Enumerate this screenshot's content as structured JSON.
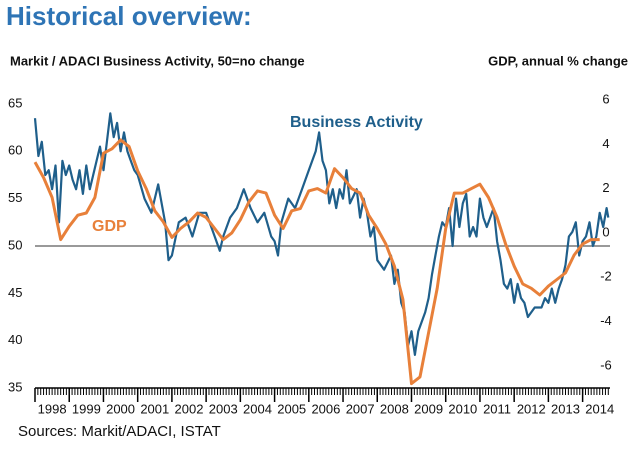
{
  "chart_data": {
    "type": "line",
    "title": "Historical overview:",
    "y_label": "Markit / ADACI  Business Activity, 50=no change",
    "y2_label": "GDP, annual % change",
    "source": "Sources: Markit/ADACI, ISTAT",
    "xlim": [
      1998,
      2014.8
    ],
    "xticks": [
      1998,
      1999,
      2000,
      2001,
      2002,
      2003,
      2004,
      2005,
      2006,
      2007,
      2008,
      2009,
      2010,
      2011,
      2012,
      2013,
      2014
    ],
    "ylim": [
      35,
      66
    ],
    "yticks": [
      35,
      40,
      45,
      50,
      55,
      60,
      65
    ],
    "y2lim": [
      -7,
      6.25
    ],
    "y2ticks": [
      -6,
      -4,
      -2,
      0,
      2,
      4,
      6
    ],
    "reference_line": 50,
    "series": [
      {
        "name": "Business Activity",
        "color": "#1f5f8b",
        "axis": "y",
        "x": [
          1998.0,
          1998.1,
          1998.2,
          1998.3,
          1998.4,
          1998.5,
          1998.6,
          1998.7,
          1998.8,
          1998.9,
          1999.0,
          1999.1,
          1999.2,
          1999.3,
          1999.4,
          1999.5,
          1999.6,
          1999.7,
          1999.8,
          1999.9,
          2000.0,
          2000.1,
          2000.2,
          2000.3,
          2000.4,
          2000.5,
          2000.6,
          2000.7,
          2000.8,
          2000.9,
          2001.0,
          2001.2,
          2001.4,
          2001.6,
          2001.8,
          2001.9,
          2002.0,
          2002.2,
          2002.4,
          2002.6,
          2002.8,
          2003.0,
          2003.2,
          2003.4,
          2003.5,
          2003.7,
          2003.9,
          2004.1,
          2004.3,
          2004.5,
          2004.7,
          2004.9,
          2005.0,
          2005.1,
          2005.2,
          2005.4,
          2005.6,
          2005.8,
          2006.0,
          2006.2,
          2006.3,
          2006.4,
          2006.5,
          2006.6,
          2006.7,
          2006.8,
          2006.9,
          2007.0,
          2007.1,
          2007.2,
          2007.4,
          2007.5,
          2007.6,
          2007.7,
          2007.8,
          2007.9,
          2008.0,
          2008.2,
          2008.4,
          2008.5,
          2008.6,
          2008.7,
          2008.8,
          2008.9,
          2009.0,
          2009.1,
          2009.2,
          2009.4,
          2009.5,
          2009.6,
          2009.7,
          2009.8,
          2009.9,
          2010.0,
          2010.1,
          2010.2,
          2010.3,
          2010.4,
          2010.5,
          2010.6,
          2010.7,
          2010.8,
          2010.9,
          2011.0,
          2011.1,
          2011.2,
          2011.4,
          2011.5,
          2011.6,
          2011.7,
          2011.8,
          2011.9,
          2012.0,
          2012.1,
          2012.2,
          2012.3,
          2012.4,
          2012.6,
          2012.8,
          2012.9,
          2013.0,
          2013.1,
          2013.2,
          2013.3,
          2013.4,
          2013.5,
          2013.6,
          2013.7,
          2013.8,
          2013.9,
          2014.0,
          2014.1,
          2014.2,
          2014.3,
          2014.4,
          2014.5,
          2014.6,
          2014.7,
          2014.75
        ],
        "values": [
          63.5,
          59.5,
          61,
          57.5,
          58,
          56,
          58.5,
          52.5,
          59,
          57.5,
          58.5,
          57,
          56,
          58,
          55.5,
          58.5,
          56,
          57.5,
          59,
          60.5,
          58,
          61,
          64,
          61.5,
          63,
          60,
          62,
          60,
          59,
          58,
          57.5,
          55,
          53.5,
          56.5,
          52.5,
          48.5,
          49,
          52.5,
          53,
          51,
          53.5,
          53.5,
          51.5,
          49.5,
          51,
          53,
          54,
          56,
          54,
          52.5,
          53.5,
          51,
          50.5,
          49,
          52.5,
          55,
          54,
          56,
          58,
          60,
          62,
          59,
          58,
          54.5,
          56,
          54,
          56,
          55,
          58,
          54.5,
          56,
          53,
          55,
          53.5,
          51,
          52,
          48.5,
          47.5,
          49,
          46,
          47.5,
          44,
          43,
          39.5,
          41,
          38.5,
          41,
          43,
          44.5,
          47,
          49,
          51,
          52.5,
          52,
          54,
          50,
          55,
          52,
          54.5,
          55.5,
          51,
          52,
          51,
          55,
          53,
          52,
          54,
          50.5,
          48.5,
          46,
          45.5,
          46.5,
          44,
          46,
          44.5,
          44,
          42.5,
          43.5,
          43.5,
          44.5,
          44,
          45.5,
          44,
          45.5,
          46.5,
          48,
          51,
          51.5,
          52.5,
          49,
          50.5,
          51,
          52.5,
          50,
          51,
          53.5,
          52,
          54,
          53
        ]
      },
      {
        "name": "GDP",
        "color": "#e8803a",
        "axis": "y2",
        "x": [
          1998.0,
          1998.25,
          1998.5,
          1998.75,
          1999.0,
          1999.25,
          1999.5,
          1999.75,
          2000.0,
          2000.25,
          2000.5,
          2000.75,
          2001.0,
          2001.25,
          2001.5,
          2001.75,
          2002.0,
          2002.25,
          2002.5,
          2002.75,
          2003.0,
          2003.25,
          2003.5,
          2003.75,
          2004.0,
          2004.25,
          2004.5,
          2004.75,
          2005.0,
          2005.25,
          2005.5,
          2005.75,
          2006.0,
          2006.25,
          2006.5,
          2006.75,
          2007.0,
          2007.25,
          2007.5,
          2007.75,
          2008.0,
          2008.25,
          2008.5,
          2008.75,
          2009.0,
          2009.25,
          2009.5,
          2009.75,
          2010.0,
          2010.25,
          2010.5,
          2010.75,
          2011.0,
          2011.25,
          2011.5,
          2011.75,
          2012.0,
          2012.25,
          2012.5,
          2012.75,
          2013.0,
          2013.25,
          2013.5,
          2013.75,
          2014.0,
          2014.25,
          2014.5
        ],
        "values": [
          3.2,
          2.5,
          1.6,
          -0.3,
          0.3,
          0.8,
          0.9,
          1.6,
          3.6,
          3.8,
          4.2,
          3.9,
          2.8,
          2.0,
          1.0,
          0.5,
          -0.2,
          0.2,
          0.5,
          0.9,
          0.7,
          0.2,
          -0.3,
          0.0,
          0.6,
          1.4,
          1.9,
          1.8,
          0.8,
          0.2,
          1.0,
          1.1,
          1.9,
          2.0,
          1.8,
          2.9,
          2.5,
          2.0,
          1.8,
          0.8,
          0.2,
          -0.5,
          -1.5,
          -3.0,
          -6.8,
          -6.5,
          -4.5,
          -2.5,
          0.2,
          1.8,
          1.8,
          2.0,
          2.2,
          1.6,
          0.7,
          -0.5,
          -1.5,
          -2.3,
          -2.5,
          -2.8,
          -2.4,
          -2.1,
          -1.8,
          -1.0,
          -0.5,
          -0.3,
          -0.3
        ]
      }
    ]
  }
}
